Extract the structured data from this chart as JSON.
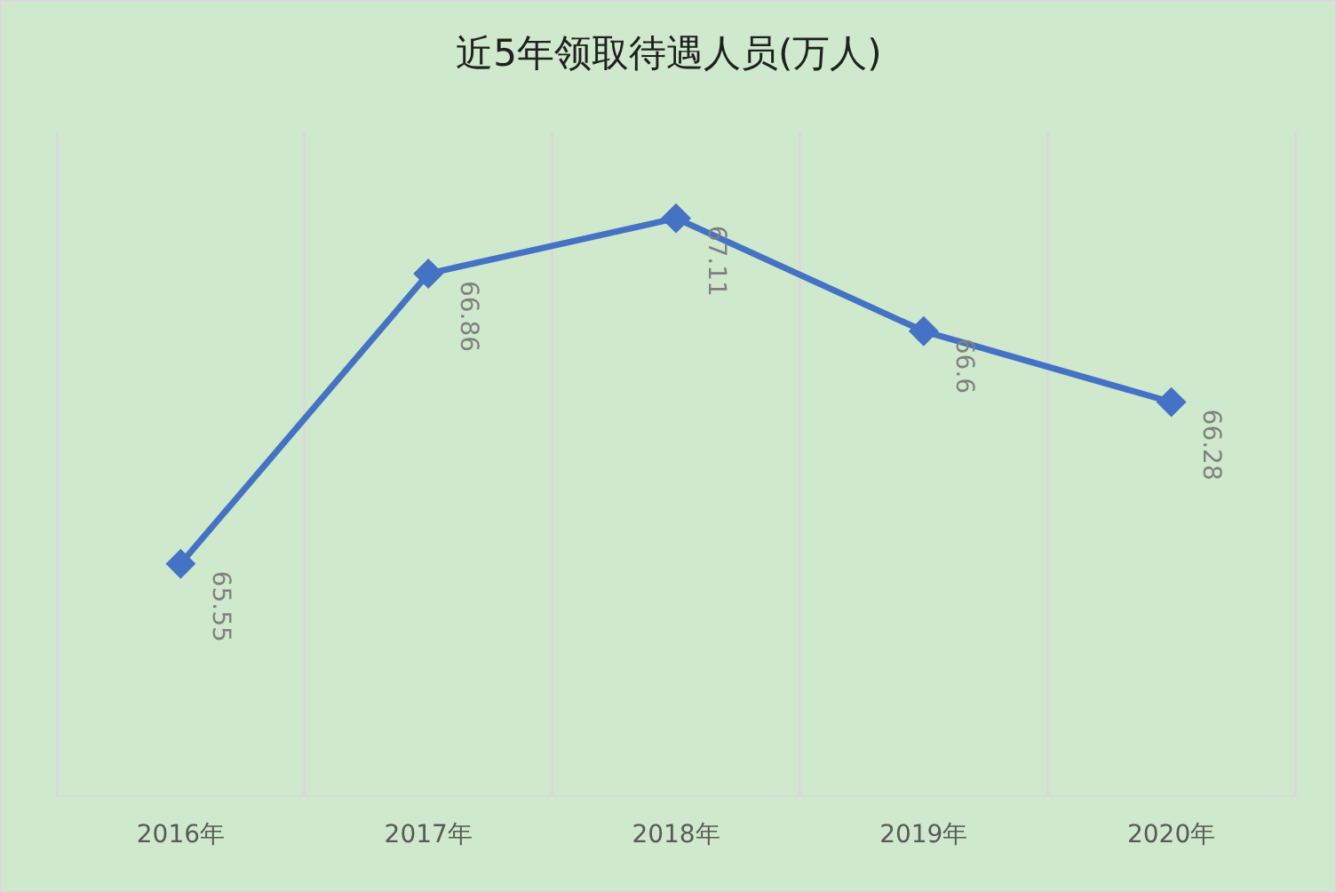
{
  "chart_data": {
    "type": "line",
    "title": "近5年领取待遇人员(万人)",
    "categories": [
      "2016年",
      "2017年",
      "2018年",
      "2019年",
      "2020年"
    ],
    "values": [
      65.55,
      66.86,
      67.11,
      66.6,
      66.28
    ],
    "color": "#4472c4",
    "marker": "diamond",
    "line_style": "solid",
    "data_labels": true,
    "ylim": [
      64.5,
      67.5
    ],
    "tick_labels": "x",
    "grid": "x",
    "legend": false
  }
}
